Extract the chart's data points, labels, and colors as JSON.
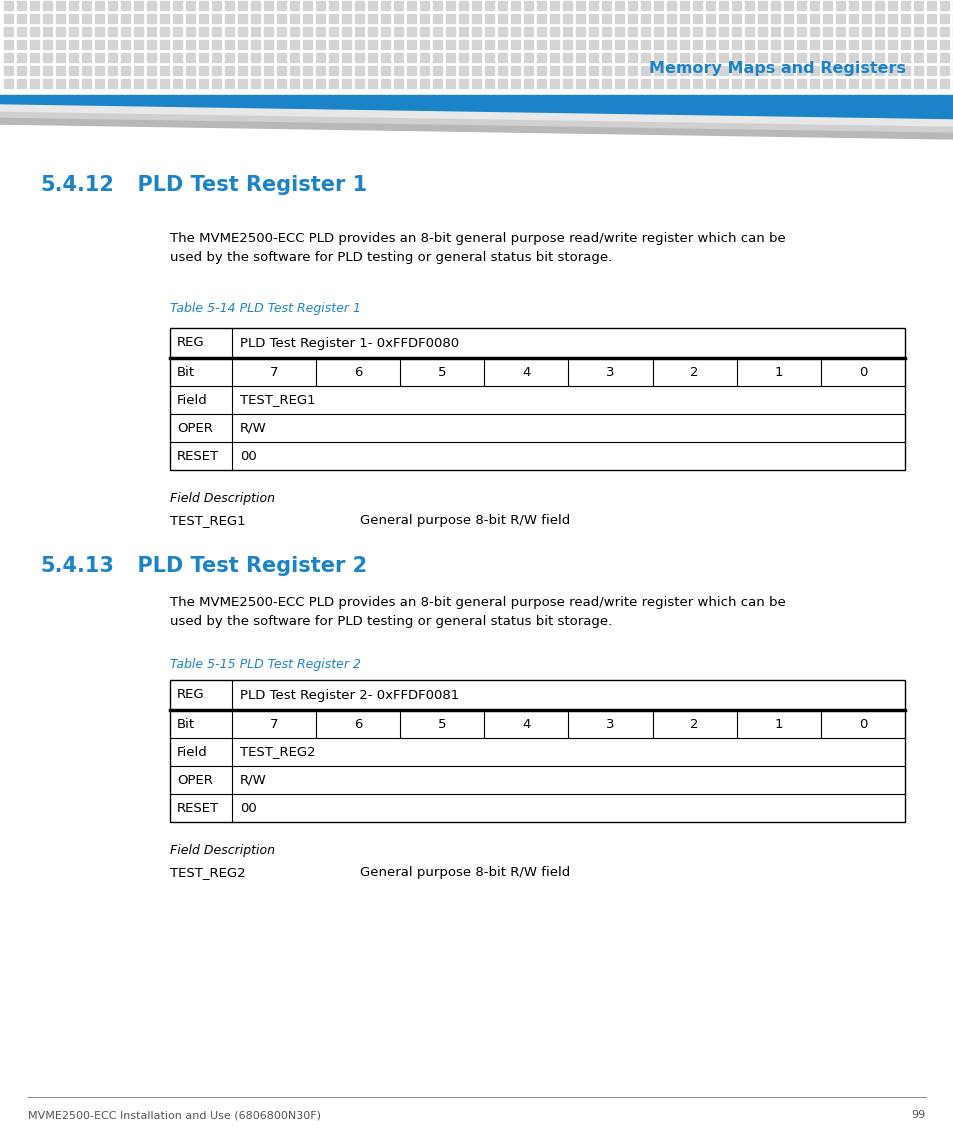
{
  "page_bg": "#ffffff",
  "header_dot_color": "#d4d4d4",
  "header_bar_color": "#1b84c8",
  "header_title": "Memory Maps and Registers",
  "header_title_color": "#1b84c8",
  "section1_number": "5.4.12",
  "section1_title": "  PLD Test Register 1",
  "section1_color": "#1b84c8",
  "section1_body_line1": "The MVME2500-ECC PLD provides an 8-bit general purpose read/write register which can be",
  "section1_body_line2": "used by the software for PLD testing or general status bit storage.",
  "section1_table_caption": "Table 5-14 PLD Test Register 1",
  "section1_table_caption_color": "#1b84c8",
  "table1_reg_value": "PLD Test Register 1- 0xFFDF0080",
  "table1_bit_values": [
    "7",
    "6",
    "5",
    "4",
    "3",
    "2",
    "1",
    "0"
  ],
  "table1_field_value": "TEST_REG1",
  "table1_oper_value": "R/W",
  "table1_reset_value": "00",
  "field_desc_label1": "Field Description",
  "field1_name": "TEST_REG1",
  "field1_desc": "General purpose 8-bit R/W field",
  "section2_number": "5.4.13",
  "section2_title": "  PLD Test Register 2",
  "section2_color": "#1b84c8",
  "section2_body_line1": "The MVME2500-ECC PLD provides an 8-bit general purpose read/write register which can be",
  "section2_body_line2": "used by the software for PLD testing or general status bit storage.",
  "section2_table_caption": "Table 5-15 PLD Test Register 2",
  "section2_table_caption_color": "#1b84c8",
  "table2_reg_value": "PLD Test Register 2- 0xFFDF0081",
  "table2_bit_values": [
    "7",
    "6",
    "5",
    "4",
    "3",
    "2",
    "1",
    "0"
  ],
  "table2_field_value": "TEST_REG2",
  "table2_oper_value": "R/W",
  "table2_reset_value": "00",
  "field_desc_label2": "Field Description",
  "field2_name": "TEST_REG2",
  "field2_desc": "General purpose 8-bit R/W field",
  "footer_text": "MVME2500-ECC Installation and Use (6806800N30F)",
  "footer_page": "99",
  "footer_color": "#555555",
  "table_border_color": "#000000",
  "body_text_color": "#000000"
}
